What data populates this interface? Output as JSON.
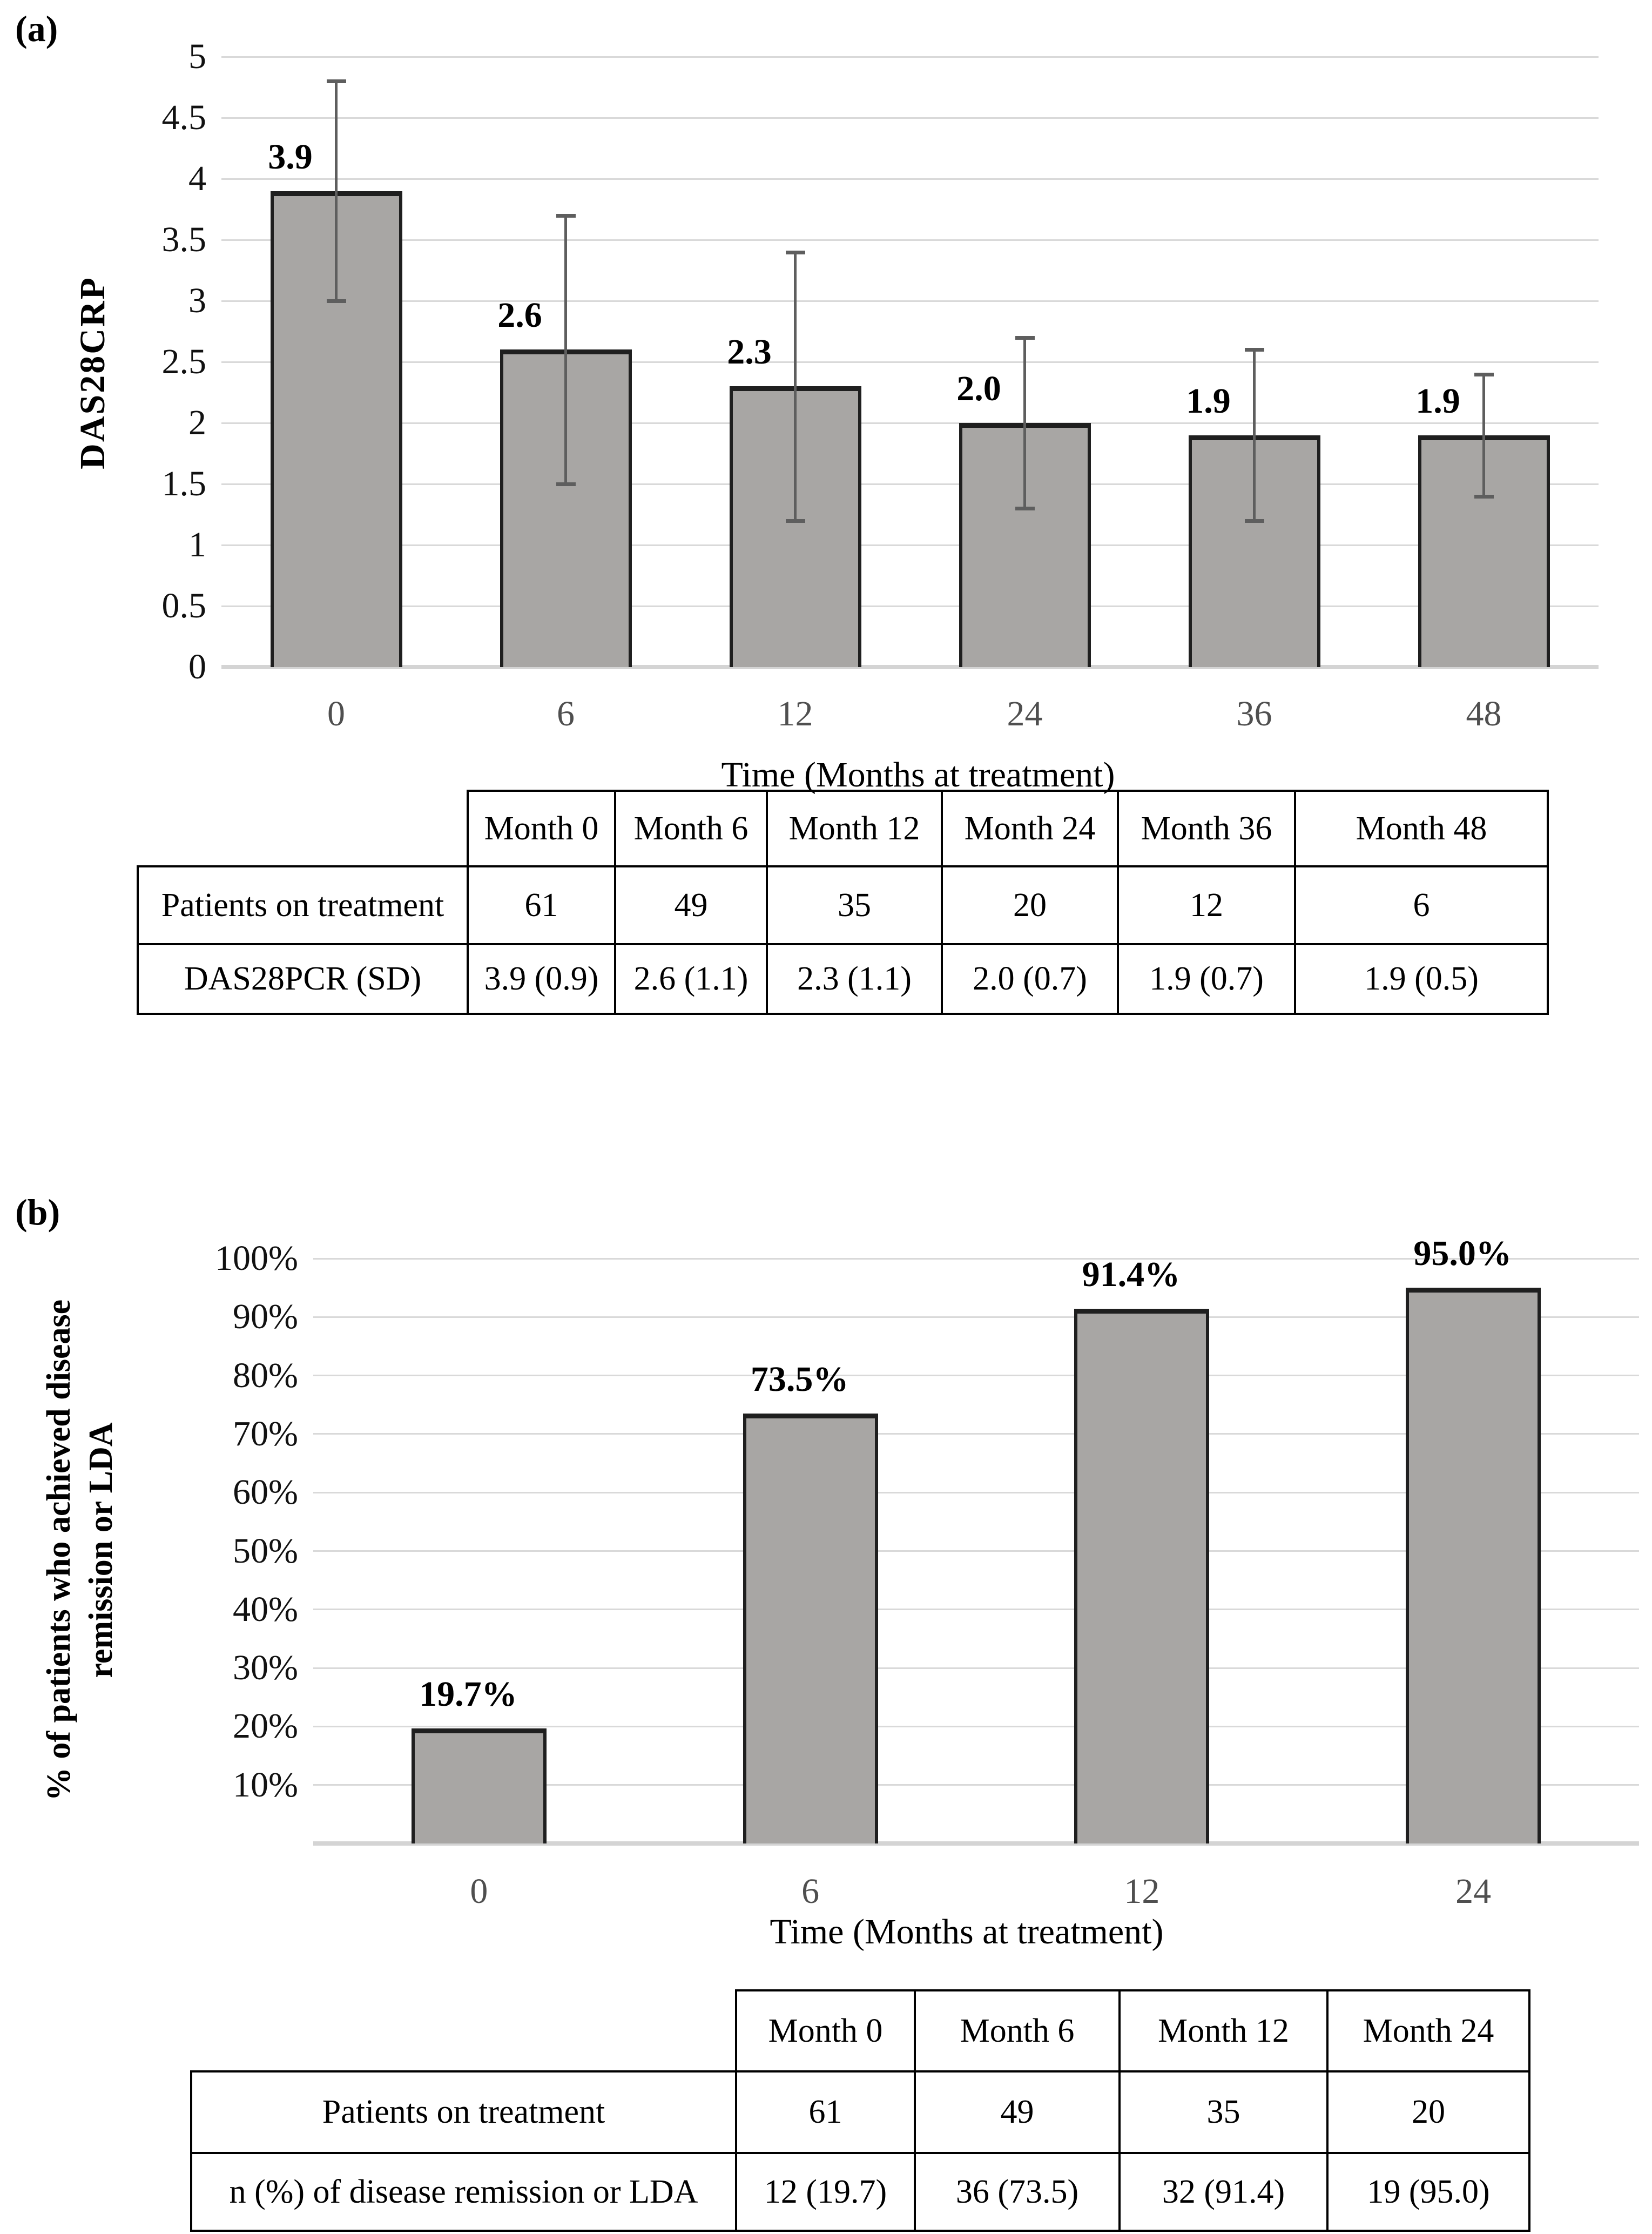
{
  "figure": {
    "panel_a_label": "(a)",
    "panel_b_label": "(b)"
  },
  "chart_data": [
    {
      "type": "bar",
      "title": "",
      "categories": [
        "0",
        "6",
        "12",
        "24",
        "36",
        "48"
      ],
      "values": [
        3.9,
        2.6,
        2.3,
        2.0,
        1.9,
        1.9
      ],
      "sd": [
        0.9,
        1.1,
        1.1,
        0.7,
        0.7,
        0.5
      ],
      "bar_labels": [
        "3.9",
        "2.6",
        "2.3",
        "2.0",
        "1.9",
        "1.9"
      ],
      "xlabel": "Time (Months at treatment)",
      "ylabel": "DAS28CRP",
      "ylim": [
        0,
        5
      ],
      "ytick_step": 0.5,
      "ytick_labels": [
        "0",
        "0.5",
        "1",
        "1.5",
        "2",
        "2.5",
        "3",
        "3.5",
        "4",
        "4.5",
        "5"
      ],
      "grid": true,
      "legend": "none",
      "bar_color": "#a8a6a4",
      "error_bar_color": "#5e5e5e"
    },
    {
      "type": "bar",
      "title": "",
      "categories": [
        "0",
        "6",
        "12",
        "24"
      ],
      "values": [
        19.7,
        73.5,
        91.4,
        95.0
      ],
      "bar_labels": [
        "19.7%",
        "73.5%",
        "91.4%",
        "95.0%"
      ],
      "xlabel": "Time (Months at treatment)",
      "ylabel_line1": "% of patients who achieved disease",
      "ylabel_line2": "remission or LDA",
      "ylim": [
        0,
        100
      ],
      "ytick_step": 10,
      "ytick_labels": [
        "",
        "10%",
        "20%",
        "30%",
        "40%",
        "50%",
        "60%",
        "70%",
        "80%",
        "90%",
        "100%"
      ],
      "grid": true,
      "legend": "none",
      "bar_color": "#a8a6a4"
    }
  ],
  "tables": {
    "panel_a": {
      "columns": [
        "Month 0",
        "Month 6",
        "Month 12",
        "Month 24",
        "Month 36",
        "Month 48"
      ],
      "rows": [
        {
          "label": "Patients on treatment",
          "cells": [
            "61",
            "49",
            "35",
            "20",
            "12",
            "6"
          ]
        },
        {
          "label": "DAS28PCR (SD)",
          "cells": [
            "3.9 (0.9)",
            "2.6 (1.1)",
            "2.3 (1.1)",
            "2.0 (0.7)",
            "1.9 (0.7)",
            "1.9 (0.5)"
          ]
        }
      ]
    },
    "panel_b": {
      "columns": [
        "Month 0",
        "Month 6",
        "Month 12",
        "Month 24"
      ],
      "rows": [
        {
          "label": "Patients on treatment",
          "cells": [
            "61",
            "49",
            "35",
            "20"
          ]
        },
        {
          "label": "n (%) of disease remission or LDA",
          "cells": [
            "12 (19.7)",
            "36 (73.5)",
            "32 (91.4)",
            "19 (95.0)"
          ]
        }
      ]
    }
  }
}
